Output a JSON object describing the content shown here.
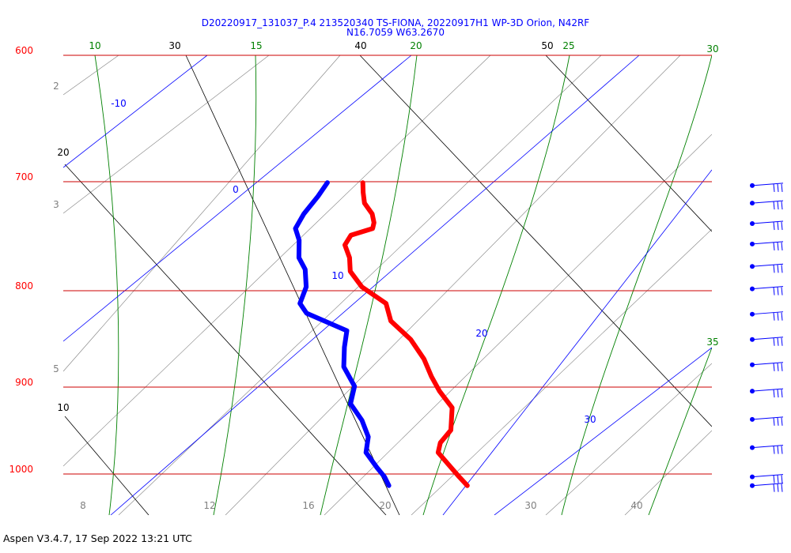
{
  "title": {
    "line1": "D20220917_131037_P.4 213520340 TS-FIONA, 20220917H1 WP-3D Orion, N42RF",
    "line2": "N16.7059 W63.2670"
  },
  "footer": "Aspen V3.4.7, 17 Sep 2022  13:21 UTC",
  "colors": {
    "temperature": "#ff0000",
    "dewpoint": "#0000ff",
    "isobar": "#cc0000",
    "isotherm": "#0000ff",
    "dry_adiabat": "#000000",
    "moist_adiabat": "#008000",
    "mixing_ratio": "#808080"
  },
  "chart_data": {
    "type": "line",
    "title": "D20220917_131037_P.4 213520340 TS-FIONA, 20220917H1 WP-3D Orion, N42RF",
    "subtitle": "N16.7059 W63.2670",
    "pressure_ticks": [
      "600",
      "700",
      "800",
      "900",
      "1000"
    ],
    "mixing_ratio_ticks": [
      "2",
      "3",
      "5",
      "8",
      "12",
      "16",
      "20",
      "30",
      "40"
    ],
    "dry_adiabat_labels": [
      "30",
      "40",
      "50",
      "20",
      "10"
    ],
    "moist_adiabat_labels": [
      "10",
      "15",
      "20",
      "25",
      "30",
      "35"
    ],
    "isotherm_labels": [
      "-10",
      "0",
      "10",
      "20",
      "30"
    ],
    "series": [
      {
        "values": [
          {
            "p": 701,
            "t": 12.6
          },
          {
            "p": 711,
            "t": 12.8
          },
          {
            "p": 722,
            "t": 13.1
          },
          {
            "p": 733,
            "t": 13.9
          },
          {
            "p": 742,
            "t": 14.2
          },
          {
            "p": 748,
            "t": 14.2
          },
          {
            "p": 755,
            "t": 12.6
          },
          {
            "p": 765,
            "t": 12.3
          },
          {
            "p": 778,
            "t": 12.9
          },
          {
            "p": 792,
            "t": 13.2
          },
          {
            "p": 808,
            "t": 14.4
          },
          {
            "p": 825,
            "t": 16.6
          },
          {
            "p": 843,
            "t": 17.3
          },
          {
            "p": 862,
            "t": 19.2
          },
          {
            "p": 882,
            "t": 20.6
          },
          {
            "p": 900,
            "t": 21.5
          },
          {
            "p": 915,
            "t": 22.4
          },
          {
            "p": 932,
            "t": 23.7
          },
          {
            "p": 955,
            "t": 24.0
          },
          {
            "p": 968,
            "t": 23.4
          },
          {
            "p": 978,
            "t": 23.4
          },
          {
            "p": 990,
            "t": 24.4
          },
          {
            "p": 1003,
            "t": 25.5
          },
          {
            "p": 1012,
            "t": 26.3
          }
        ]
      },
      {
        "values": [
          {
            "p": 701,
            "t": 9.8
          },
          {
            "p": 715,
            "t": 9.3
          },
          {
            "p": 733,
            "t": 8.5
          },
          {
            "p": 748,
            "t": 8.1
          },
          {
            "p": 760,
            "t": 8.6
          },
          {
            "p": 778,
            "t": 8.9
          },
          {
            "p": 790,
            "t": 9.6
          },
          {
            "p": 808,
            "t": 10.0
          },
          {
            "p": 825,
            "t": 9.8
          },
          {
            "p": 835,
            "t": 10.5
          },
          {
            "p": 853,
            "t": 14.0
          },
          {
            "p": 870,
            "t": 14.1
          },
          {
            "p": 890,
            "t": 14.4
          },
          {
            "p": 910,
            "t": 15.6
          },
          {
            "p": 928,
            "t": 15.6
          },
          {
            "p": 945,
            "t": 16.8
          },
          {
            "p": 962,
            "t": 17.6
          },
          {
            "p": 978,
            "t": 17.7
          },
          {
            "p": 993,
            "t": 18.8
          },
          {
            "p": 1003,
            "t": 19.6
          },
          {
            "p": 1012,
            "t": 20.1
          }
        ]
      }
    ],
    "wind_barbs": [
      {
        "p": 704
      },
      {
        "p": 722
      },
      {
        "p": 743
      },
      {
        "p": 764
      },
      {
        "p": 787
      },
      {
        "p": 810
      },
      {
        "p": 836
      },
      {
        "p": 862
      },
      {
        "p": 888
      },
      {
        "p": 915
      },
      {
        "p": 944
      },
      {
        "p": 973
      },
      {
        "p": 1003
      },
      {
        "p": 1012
      }
    ],
    "xlim": [
      -40,
      50
    ],
    "ylim": [
      1050,
      600
    ]
  }
}
